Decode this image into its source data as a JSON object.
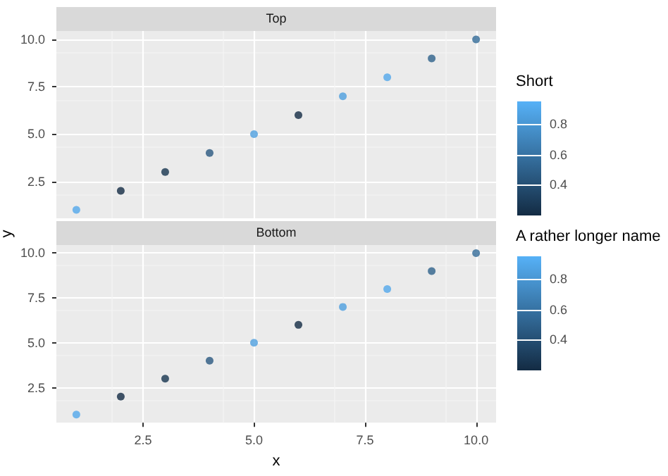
{
  "chart_data": [
    {
      "type": "scatter",
      "title": "Top",
      "clabel": "Short",
      "x": [
        1,
        2,
        3,
        4,
        5,
        6,
        7,
        8,
        9,
        10
      ],
      "values": [
        1,
        2,
        3,
        4,
        5,
        6,
        7,
        8,
        9,
        10
      ],
      "cvalues": [
        0.9,
        0.2,
        0.25,
        0.45,
        0.85,
        0.2,
        0.85,
        0.9,
        0.5,
        0.55
      ],
      "xlim": [
        0.55,
        10.45
      ],
      "ylim": [
        0.55,
        10.45
      ],
      "xticks": [
        2.5,
        5,
        7.5,
        10
      ],
      "yticks": [
        {
          "value": 2.5,
          "label": "2.5"
        },
        {
          "value": 5,
          "label": "5.0"
        },
        {
          "value": 7.5,
          "label": "7.5"
        },
        {
          "value": 10,
          "label": "10.0"
        }
      ],
      "clim": [
        0.2,
        0.95
      ],
      "cticks": [
        0.4,
        0.6,
        0.8
      ],
      "grid": true,
      "tick_labels": "y"
    },
    {
      "type": "scatter",
      "title": "Bottom",
      "xlabel": "x",
      "ylabel": "y",
      "clabel": "A rather longer name",
      "x": [
        1,
        2,
        3,
        4,
        5,
        6,
        7,
        8,
        9,
        10
      ],
      "values": [
        1,
        2,
        3,
        4,
        5,
        6,
        7,
        8,
        9,
        10
      ],
      "cvalues": [
        0.9,
        0.2,
        0.25,
        0.45,
        0.85,
        0.2,
        0.85,
        0.9,
        0.5,
        0.55
      ],
      "xlim": [
        0.55,
        10.45
      ],
      "ylim": [
        0.55,
        10.45
      ],
      "xticks": [
        {
          "value": 2.5,
          "label": "2.5"
        },
        {
          "value": 5,
          "label": "5.0"
        },
        {
          "value": 7.5,
          "label": "7.5"
        },
        {
          "value": 10,
          "label": "10.0"
        }
      ],
      "yticks": [
        {
          "value": 2.5,
          "label": "2.5"
        },
        {
          "value": 5,
          "label": "5.0"
        },
        {
          "value": 7.5,
          "label": "7.5"
        },
        {
          "value": 10,
          "label": "10.0"
        }
      ],
      "clim": [
        0.2,
        0.95
      ],
      "cticks": [
        0.4,
        0.6,
        0.8
      ],
      "grid": true
    }
  ]
}
